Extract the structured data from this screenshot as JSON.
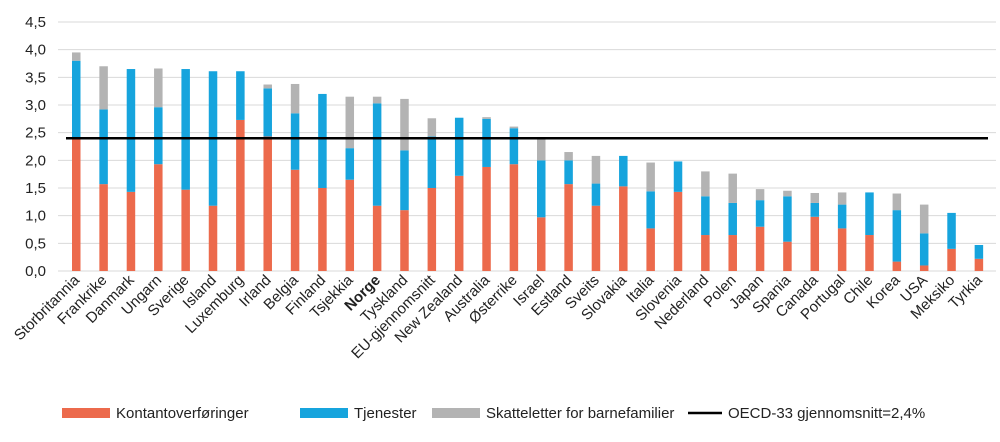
{
  "chart_data": {
    "type": "bar",
    "stacked": true,
    "title": "",
    "xlabel": "",
    "ylabel": "",
    "ylim": [
      0,
      4.5
    ],
    "yticks": [
      "0,0",
      "0,5",
      "1,0",
      "1,5",
      "2,0",
      "2,5",
      "3,0",
      "3,5",
      "4,0",
      "4,5"
    ],
    "grid": true,
    "legend_position": "bottom",
    "highlight_category": "Norge",
    "categories": [
      "Storbritannia",
      "Frankrike",
      "Danmark",
      "Ungarn",
      "Sverige",
      "Island",
      "Luxemburg",
      "Irland",
      "Belgia",
      "Finland",
      "Tsjekkia",
      "Norge",
      "Tyskland",
      "EU-gjennomsnitt",
      "New Zealand",
      "Australia",
      "Østerrike",
      "Israel",
      "Estland",
      "Sveits",
      "Slovakia",
      "Italia",
      "Slovenia",
      "Nederland",
      "Polen",
      "Japan",
      "Spania",
      "Canada",
      "Portugal",
      "Chile",
      "Korea",
      "USA",
      "Meksiko",
      "Tyrkia"
    ],
    "series": [
      {
        "name": "Kontantoverføringer",
        "color": "#ec6a4c",
        "values": [
          2.4,
          1.57,
          1.43,
          1.93,
          1.47,
          1.18,
          2.73,
          2.43,
          1.83,
          1.5,
          1.65,
          1.18,
          1.1,
          1.5,
          1.72,
          1.88,
          1.93,
          0.97,
          1.57,
          1.18,
          1.53,
          0.77,
          1.43,
          0.65,
          0.65,
          0.8,
          0.53,
          0.98,
          0.77,
          0.65,
          0.17,
          0.1,
          0.4,
          0.22
        ]
      },
      {
        "name": "Tjenester",
        "color": "#16a4dd",
        "values": [
          1.4,
          1.35,
          2.22,
          1.03,
          2.18,
          2.43,
          0.88,
          0.87,
          1.02,
          1.7,
          0.57,
          1.85,
          1.08,
          0.93,
          1.05,
          0.87,
          0.65,
          1.03,
          0.43,
          0.4,
          0.55,
          0.67,
          0.55,
          0.7,
          0.58,
          0.48,
          0.82,
          0.25,
          0.43,
          0.77,
          0.93,
          0.58,
          0.65,
          0.25
        ]
      },
      {
        "name": "Skatteletter for barnefamilier",
        "color": "#b3b3b3",
        "values": [
          0.15,
          0.78,
          0.0,
          0.7,
          0.0,
          0.0,
          0.0,
          0.07,
          0.53,
          0.0,
          0.93,
          0.12,
          0.93,
          0.33,
          0.0,
          0.03,
          0.03,
          0.4,
          0.15,
          0.5,
          0.0,
          0.52,
          0.0,
          0.45,
          0.53,
          0.2,
          0.1,
          0.18,
          0.22,
          0.0,
          0.3,
          0.52,
          0.0,
          0.0
        ]
      }
    ],
    "reference_line": {
      "name": "OECD-33 gjennomsnitt=2,4%",
      "value": 2.4,
      "color": "#000000"
    }
  }
}
